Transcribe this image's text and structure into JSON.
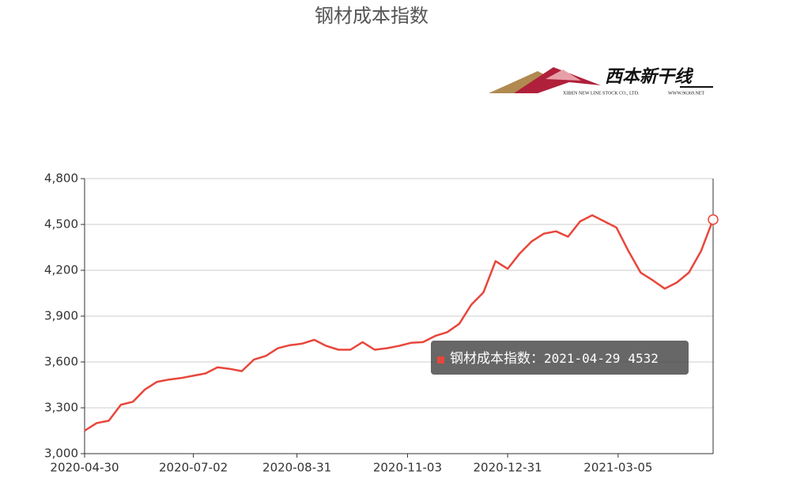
{
  "chart_data": {
    "type": "line",
    "title": "钢材成本指数",
    "x": [
      "2020-04-30",
      "2020-05-07",
      "2020-05-14",
      "2020-05-21",
      "2020-05-28",
      "2020-06-04",
      "2020-06-11",
      "2020-06-18",
      "2020-06-25",
      "2020-07-02",
      "2020-07-09",
      "2020-07-16",
      "2020-07-23",
      "2020-07-30",
      "2020-08-06",
      "2020-08-13",
      "2020-08-20",
      "2020-08-27",
      "2020-09-03",
      "2020-09-10",
      "2020-09-17",
      "2020-09-24",
      "2020-10-01",
      "2020-10-08",
      "2020-10-15",
      "2020-10-22",
      "2020-10-29",
      "2020-11-05",
      "2020-11-12",
      "2020-11-19",
      "2020-11-26",
      "2020-12-03",
      "2020-12-10",
      "2020-12-17",
      "2020-12-24",
      "2020-12-31",
      "2021-01-07",
      "2021-01-14",
      "2021-01-21",
      "2021-01-28",
      "2021-02-04",
      "2021-02-11",
      "2021-02-18",
      "2021-02-25",
      "2021-03-04",
      "2021-03-11",
      "2021-03-18",
      "2021-03-25",
      "2021-04-01",
      "2021-04-08",
      "2021-04-15",
      "2021-04-22",
      "2021-04-29"
    ],
    "series": [
      {
        "name": "钢材成本指数",
        "color": "#e8463b",
        "values": [
          3150,
          3200,
          3215,
          3320,
          3340,
          3420,
          3470,
          3485,
          3495,
          3510,
          3525,
          3565,
          3555,
          3540,
          3615,
          3640,
          3690,
          3710,
          3720,
          3745,
          3705,
          3680,
          3680,
          3730,
          3680,
          3690,
          3705,
          3725,
          3730,
          3770,
          3795,
          3850,
          3975,
          4055,
          4260,
          4210,
          4310,
          4390,
          4440,
          4455,
          4420,
          4520,
          4560,
          4520,
          4480,
          4325,
          4185,
          4135,
          4080,
          4120,
          4185,
          4325,
          4532
        ]
      }
    ],
    "xlim": [
      "2020-04-30",
      "2021-04-29"
    ],
    "xticks": [
      "2020-04-30",
      "2020-07-02",
      "2020-08-31",
      "2020-11-03",
      "2020-12-31",
      "2021-03-05"
    ],
    "ylim": [
      3000,
      4800
    ],
    "yticks": [
      {
        "value": 3000,
        "label": "3,000"
      },
      {
        "value": 3300,
        "label": "3,300"
      },
      {
        "value": 3600,
        "label": "3,600"
      },
      {
        "value": 3900,
        "label": "3,900"
      },
      {
        "value": 4200,
        "label": "4,200"
      },
      {
        "value": 4500,
        "label": "4,500"
      },
      {
        "value": 4800,
        "label": "4,800"
      }
    ],
    "grid": true,
    "tooltip": {
      "label": "钢材成本指数："
    }
  },
  "logo": {
    "name": "西本新干线",
    "company": "XIBEN NEW LINE STOCK CO., LTD.",
    "url": "WWW.96369.NET"
  }
}
